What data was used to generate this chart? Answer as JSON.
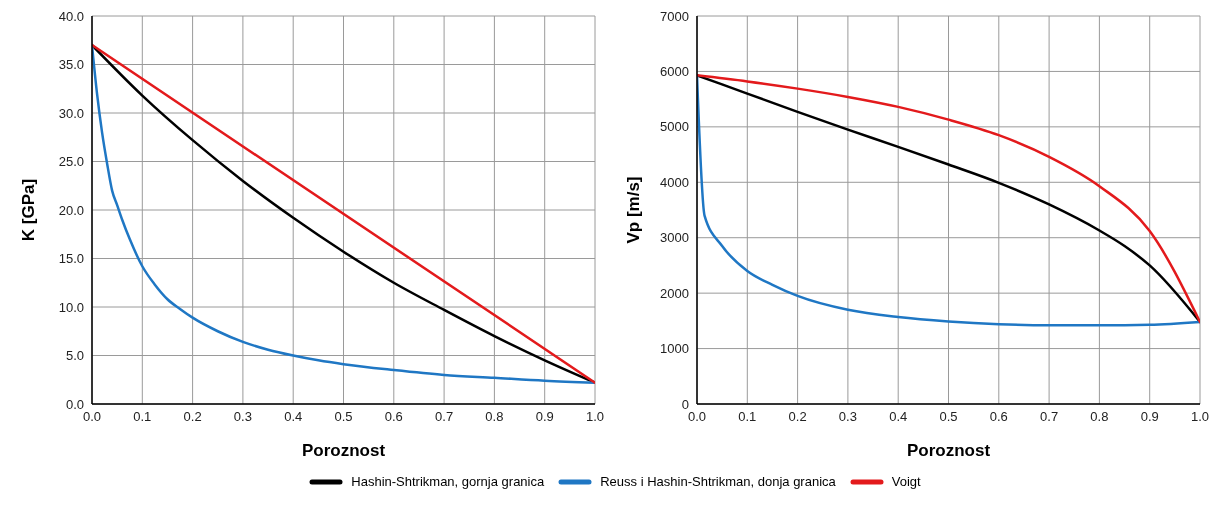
{
  "chart_data": [
    {
      "type": "line",
      "xlabel": "Poroznost",
      "ylabel": "K [GPa]",
      "xlim": [
        0,
        1
      ],
      "ylim": [
        0,
        40
      ],
      "xticks": [
        {
          "value": 0,
          "label": "0.0"
        },
        {
          "value": 0.1,
          "label": "0.1"
        },
        {
          "value": 0.2,
          "label": "0.2"
        },
        {
          "value": 0.3,
          "label": "0.3"
        },
        {
          "value": 0.4,
          "label": "0.4"
        },
        {
          "value": 0.5,
          "label": "0.5"
        },
        {
          "value": 0.6,
          "label": "0.6"
        },
        {
          "value": 0.7,
          "label": "0.7"
        },
        {
          "value": 0.8,
          "label": "0.8"
        },
        {
          "value": 0.9,
          "label": "0.9"
        },
        {
          "value": 1,
          "label": "1.0"
        }
      ],
      "yticks": [
        {
          "value": 0,
          "label": "0.0"
        },
        {
          "value": 5,
          "label": "5.0"
        },
        {
          "value": 10,
          "label": "10.0"
        },
        {
          "value": 15,
          "label": "15.0"
        },
        {
          "value": 20,
          "label": "20.0"
        },
        {
          "value": 25,
          "label": "25.0"
        },
        {
          "value": 30,
          "label": "30.0"
        },
        {
          "value": 35,
          "label": "35.0"
        },
        {
          "value": 40,
          "label": "40.0"
        }
      ],
      "grid": true,
      "legend": "bottom",
      "marker": "none",
      "line_style": "solid",
      "series": [
        {
          "name": "Hashin-Shtrikman, gornja granica",
          "color": "#000000",
          "x": [
            0,
            0.1,
            0.2,
            0.3,
            0.4,
            0.5,
            0.6,
            0.7,
            0.8,
            0.9,
            1
          ],
          "values": [
            37,
            31.8,
            27.2,
            23.0,
            19.2,
            15.7,
            12.5,
            9.7,
            7.0,
            4.5,
            2.2
          ]
        },
        {
          "name": "Reuss i Hashin-Shtrikman, donja granica",
          "color": "#1f77c4",
          "x": [
            0,
            0.01,
            0.02,
            0.03,
            0.04,
            0.05,
            0.06,
            0.075,
            0.1,
            0.125,
            0.15,
            0.175,
            0.2,
            0.25,
            0.3,
            0.35,
            0.4,
            0.45,
            0.5,
            0.6,
            0.7,
            0.8,
            0.9,
            1
          ],
          "values": [
            37,
            32,
            28,
            24.8,
            22,
            20.5,
            19,
            17,
            14.2,
            12.3,
            10.8,
            9.8,
            8.9,
            7.5,
            6.4,
            5.6,
            5.0,
            4.5,
            4.1,
            3.5,
            3.0,
            2.7,
            2.4,
            2.2
          ]
        },
        {
          "name": "Voigt",
          "color": "#e31a1c",
          "x": [
            0,
            1
          ],
          "values": [
            37,
            2.2
          ]
        }
      ]
    },
    {
      "type": "line",
      "xlabel": "Poroznost",
      "ylabel": "Vp [m/s]",
      "xlim": [
        0,
        1
      ],
      "ylim": [
        0,
        7000
      ],
      "xticks": [
        {
          "value": 0,
          "label": "0.0"
        },
        {
          "value": 0.1,
          "label": "0.1"
        },
        {
          "value": 0.2,
          "label": "0.2"
        },
        {
          "value": 0.3,
          "label": "0.3"
        },
        {
          "value": 0.4,
          "label": "0.4"
        },
        {
          "value": 0.5,
          "label": "0.5"
        },
        {
          "value": 0.6,
          "label": "0.6"
        },
        {
          "value": 0.7,
          "label": "0.7"
        },
        {
          "value": 0.8,
          "label": "0.8"
        },
        {
          "value": 0.9,
          "label": "0.9"
        },
        {
          "value": 1,
          "label": "1.0"
        }
      ],
      "yticks": [
        0,
        1000,
        2000,
        3000,
        4000,
        5000,
        6000,
        7000
      ],
      "grid": true,
      "marker": "none",
      "line_style": "solid",
      "series": [
        {
          "color": "#000000",
          "x": [
            0,
            0.1,
            0.2,
            0.3,
            0.4,
            0.5,
            0.6,
            0.7,
            0.8,
            0.85,
            0.9,
            1
          ],
          "values": [
            5930,
            5600,
            5270,
            4950,
            4640,
            4320,
            3990,
            3600,
            3130,
            2850,
            2500,
            1480
          ]
        },
        {
          "color": "#1f77c4",
          "x": [
            0,
            0.015,
            0.05,
            0.1,
            0.15,
            0.2,
            0.3,
            0.4,
            0.5,
            0.6,
            0.7,
            0.8,
            0.9,
            1
          ],
          "values": [
            5930,
            3400,
            2850,
            2400,
            2150,
            1950,
            1700,
            1570,
            1490,
            1440,
            1420,
            1420,
            1430,
            1480
          ]
        },
        {
          "color": "#e31a1c",
          "x": [
            0,
            0.1,
            0.2,
            0.3,
            0.4,
            0.5,
            0.6,
            0.7,
            0.8,
            0.9,
            1
          ],
          "values": [
            5930,
            5820,
            5690,
            5540,
            5360,
            5130,
            4850,
            4460,
            3930,
            3120,
            1480
          ]
        }
      ]
    }
  ]
}
